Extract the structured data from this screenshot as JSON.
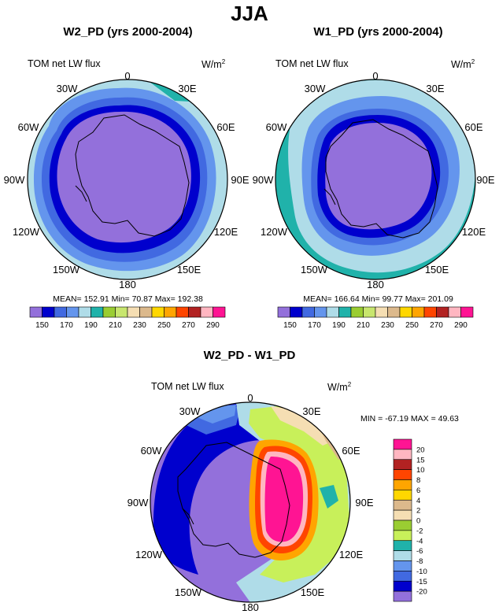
{
  "main_title": "JJA",
  "panels": [
    {
      "title": "W2_PD (yrs 2000-2004)",
      "left_label": "TOM net LW flux",
      "right_label": "W/m",
      "right_label_sup": "2",
      "lon_labels": {
        "n": "0",
        "ne": "30E",
        "e1": "60E",
        "e": "90E",
        "se1": "120E",
        "se": "150E",
        "s": "180",
        "sw": "150W",
        "sw1": "120W",
        "w": "90W",
        "nw1": "60W",
        "nw": "30W"
      },
      "stats": "MEAN= 152.91  Min=  70.87  Max= 192.38",
      "colorbar_ticks": [
        "150",
        "170",
        "190",
        "210",
        "230",
        "250",
        "270",
        "290"
      ]
    },
    {
      "title": "W1_PD (yrs 2000-2004)",
      "left_label": "TOM net LW flux",
      "right_label": "W/m",
      "right_label_sup": "2",
      "lon_labels": {
        "n": "0",
        "ne": "30E",
        "e1": "60E",
        "e": "90E",
        "se1": "120E",
        "se": "150E",
        "s": "180",
        "sw": "150W",
        "sw1": "120W",
        "w": "90W",
        "nw1": "60W",
        "nw": "30W"
      },
      "stats": "MEAN= 166.64  Min=  99.77  Max= 201.09",
      "colorbar_ticks": [
        "150",
        "170",
        "190",
        "210",
        "230",
        "250",
        "270",
        "290"
      ]
    },
    {
      "title": "W2_PD - W1_PD",
      "left_label": "TOM net LW flux",
      "right_label": "W/m",
      "right_label_sup": "2",
      "lon_labels": {
        "n": "0",
        "ne": "30E",
        "e1": "60E",
        "e": "90E",
        "se1": "120E",
        "se": "150E",
        "s": "180",
        "sw": "150W",
        "sw1": "120W",
        "w": "90W",
        "nw1": "60W",
        "nw": "30W"
      },
      "stats": "MIN = -67.19 MAX =  49.63",
      "colorbar_ticks": [
        "20",
        "15",
        "10",
        "8",
        "6",
        "4",
        "2",
        "0",
        "-2",
        "-4",
        "-6",
        "-8",
        "-10",
        "-15",
        "-20"
      ]
    }
  ],
  "colors": {
    "abs_palette": [
      "#9370db",
      "#0000cd",
      "#4169e1",
      "#6495ed",
      "#afdce8",
      "#20b2aa",
      "#9acd32",
      "#c8e66e",
      "#f5deb3",
      "#dcb98c",
      "#ffd700",
      "#ffa500",
      "#ff4500",
      "#b22222",
      "#ffb6c1",
      "#ff1493"
    ],
    "diff_palette": [
      "#ff1493",
      "#ffb6c1",
      "#b22222",
      "#ff4500",
      "#ffa500",
      "#ffd700",
      "#dcb98c",
      "#f5deb3",
      "#9acd32",
      "#c8f05a",
      "#20b2aa",
      "#afdce8",
      "#6495ed",
      "#4169e1",
      "#0000cd",
      "#9370db"
    ]
  }
}
